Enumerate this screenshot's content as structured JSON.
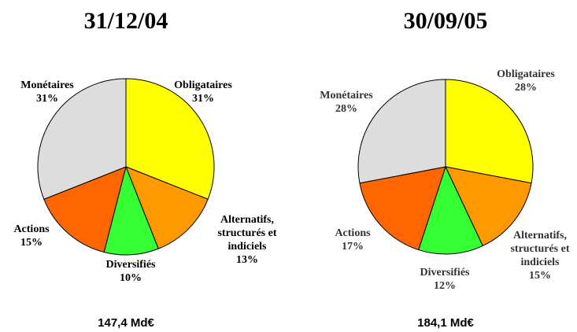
{
  "chart_data": [
    {
      "type": "pie",
      "title": "31/12/04",
      "categories": [
        "Obligataires",
        "Alternatifs, structurés et indiciels",
        "Diversifiés",
        "Actions",
        "Monétaires"
      ],
      "values": [
        31,
        13,
        10,
        15,
        31
      ],
      "value_labels": [
        "31%",
        "13%",
        "10%",
        "15%",
        "31%"
      ],
      "colors": [
        "#ffff00",
        "#ff9900",
        "#33ff33",
        "#ff6600",
        "#dddddd"
      ],
      "annotation": "147,4 Md€"
    },
    {
      "type": "pie",
      "title": "30/09/05",
      "categories": [
        "Obligataires",
        "Alternatifs, structurés et indiciels",
        "Diversifiés",
        "Actions",
        "Monétaires"
      ],
      "values": [
        28,
        15,
        12,
        17,
        28
      ],
      "value_labels": [
        "28%",
        "15%",
        "12%",
        "17%",
        "28%"
      ],
      "colors": [
        "#ffff00",
        "#ff9900",
        "#33ff33",
        "#ff6600",
        "#dddddd"
      ],
      "annotation": "184,1 Md€"
    }
  ]
}
